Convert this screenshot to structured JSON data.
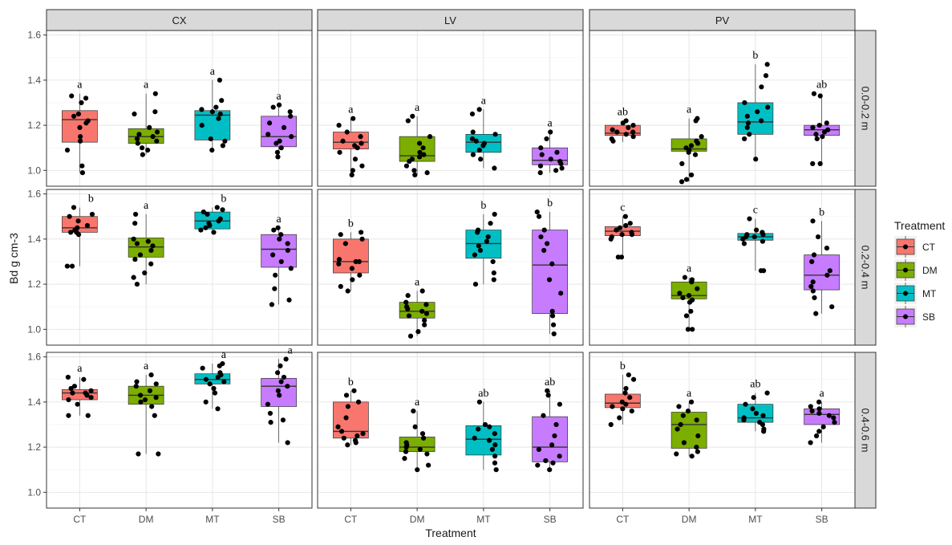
{
  "chart_data": {
    "type": "box",
    "xlabel": "Treatment",
    "ylabel": "Bd g cm-3",
    "ylim": [
      0.93,
      1.62
    ],
    "yticks": [
      1.0,
      1.2,
      1.4,
      1.6
    ],
    "ytick_labels": [
      "1.0",
      "1.2",
      "1.4",
      "1.6"
    ],
    "categories": [
      "CT",
      "DM",
      "MT",
      "SB"
    ],
    "column_facets": [
      "CX",
      "LV",
      "PV"
    ],
    "row_facets": [
      "0.0-0.2 m",
      "0.2-0.4 m",
      "0.4-0.6 m"
    ],
    "grid": true,
    "legend": {
      "title": "Treatment",
      "position": "right",
      "entries": [
        {
          "label": "CT",
          "color": "#F8766D"
        },
        {
          "label": "DM",
          "color": "#7CAE00"
        },
        {
          "label": "MT",
          "color": "#00BFC4"
        },
        {
          "label": "SB",
          "color": "#C77CFF"
        }
      ]
    },
    "panels": [
      {
        "row": 0,
        "col": 0,
        "boxes": [
          {
            "q1": 1.125,
            "median": 1.225,
            "q3": 1.265,
            "min": 0.99,
            "max": 1.34,
            "letter": "a",
            "points": [
              1.33,
              1.32,
              1.3,
              1.25,
              1.24,
              1.22,
              1.21,
              1.19,
              1.15,
              1.13,
              1.09,
              1.02,
              0.99
            ]
          },
          {
            "q1": 1.12,
            "median": 1.15,
            "q3": 1.185,
            "min": 1.07,
            "max": 1.34,
            "letter": "a",
            "points": [
              1.34,
              1.26,
              1.25,
              1.19,
              1.17,
              1.16,
              1.15,
              1.14,
              1.13,
              1.12,
              1.1,
              1.09,
              1.07
            ]
          },
          {
            "q1": 1.135,
            "median": 1.245,
            "q3": 1.265,
            "min": 1.085,
            "max": 1.4,
            "letter": "a",
            "points": [
              1.4,
              1.31,
              1.28,
              1.27,
              1.26,
              1.25,
              1.23,
              1.2,
              1.14,
              1.13,
              1.11,
              1.09
            ]
          },
          {
            "q1": 1.105,
            "median": 1.15,
            "q3": 1.24,
            "min": 1.06,
            "max": 1.29,
            "letter": "a",
            "points": [
              1.29,
              1.28,
              1.26,
              1.24,
              1.21,
              1.19,
              1.16,
              1.15,
              1.13,
              1.12,
              1.1,
              1.08,
              1.06
            ]
          }
        ]
      },
      {
        "row": 0,
        "col": 1,
        "boxes": [
          {
            "q1": 1.095,
            "median": 1.125,
            "q3": 1.17,
            "min": 0.98,
            "max": 1.23,
            "letter": "a",
            "points": [
              1.23,
              1.2,
              1.17,
              1.15,
              1.13,
              1.12,
              1.11,
              1.1,
              1.08,
              1.05,
              1.02,
              1.0,
              0.98
            ]
          },
          {
            "q1": 1.04,
            "median": 1.065,
            "q3": 1.15,
            "min": 0.98,
            "max": 1.24,
            "letter": "a",
            "points": [
              1.24,
              1.22,
              1.15,
              1.12,
              1.1,
              1.08,
              1.07,
              1.06,
              1.05,
              1.04,
              1.02,
              1.0,
              0.99,
              0.98
            ]
          },
          {
            "q1": 1.08,
            "median": 1.125,
            "q3": 1.16,
            "min": 1.01,
            "max": 1.27,
            "letter": "a",
            "points": [
              1.27,
              1.25,
              1.17,
              1.16,
              1.14,
              1.13,
              1.12,
              1.11,
              1.09,
              1.07,
              1.05,
              1.01
            ]
          },
          {
            "q1": 1.025,
            "median": 1.045,
            "q3": 1.1,
            "min": 0.99,
            "max": 1.17,
            "letter": "a",
            "points": [
              1.17,
              1.14,
              1.1,
              1.08,
              1.07,
              1.05,
              1.04,
              1.03,
              1.02,
              1.01,
              1.0,
              0.99
            ]
          }
        ]
      },
      {
        "row": 0,
        "col": 2,
        "boxes": [
          {
            "q1": 1.155,
            "median": 1.165,
            "q3": 1.2,
            "min": 1.125,
            "max": 1.22,
            "letter": "ab",
            "points": [
              1.22,
              1.21,
              1.2,
              1.19,
              1.18,
              1.17,
              1.17,
              1.16,
              1.15,
              1.14,
              1.13
            ]
          },
          {
            "q1": 1.085,
            "median": 1.095,
            "q3": 1.14,
            "min": 0.95,
            "max": 1.23,
            "letter": "a",
            "points": [
              1.23,
              1.22,
              1.15,
              1.13,
              1.12,
              1.11,
              1.1,
              1.09,
              1.08,
              1.07,
              1.03,
              0.98,
              0.96,
              0.95
            ]
          },
          {
            "q1": 1.16,
            "median": 1.215,
            "q3": 1.3,
            "min": 1.05,
            "max": 1.47,
            "letter": "b",
            "points": [
              1.47,
              1.42,
              1.37,
              1.3,
              1.28,
              1.26,
              1.24,
              1.22,
              1.21,
              1.19,
              1.16,
              1.14,
              1.05
            ]
          },
          {
            "q1": 1.155,
            "median": 1.18,
            "q3": 1.2,
            "min": 1.03,
            "max": 1.34,
            "letter": "ab",
            "points": [
              1.34,
              1.33,
              1.21,
              1.2,
              1.19,
              1.18,
              1.17,
              1.16,
              1.15,
              1.14,
              1.03,
              1.03
            ]
          }
        ]
      },
      {
        "row": 1,
        "col": 0,
        "boxes": [
          {
            "q1": 1.43,
            "median": 1.45,
            "q3": 1.5,
            "min": 1.28,
            "max": 1.54,
            "letter": "b",
            "points": [
              1.54,
              1.51,
              1.5,
              1.48,
              1.46,
              1.45,
              1.44,
              1.43,
              1.43,
              1.42,
              1.28,
              1.28
            ]
          },
          {
            "q1": 1.32,
            "median": 1.365,
            "q3": 1.405,
            "min": 1.2,
            "max": 1.51,
            "letter": "a",
            "points": [
              1.51,
              1.47,
              1.4,
              1.39,
              1.38,
              1.37,
              1.35,
              1.33,
              1.31,
              1.29,
              1.25,
              1.23,
              1.2
            ]
          },
          {
            "q1": 1.445,
            "median": 1.48,
            "q3": 1.52,
            "min": 1.43,
            "max": 1.54,
            "letter": "b",
            "points": [
              1.54,
              1.53,
              1.52,
              1.51,
              1.49,
              1.48,
              1.47,
              1.46,
              1.45,
              1.44,
              1.43
            ]
          },
          {
            "q1": 1.275,
            "median": 1.355,
            "q3": 1.42,
            "min": 1.11,
            "max": 1.45,
            "letter": "a",
            "points": [
              1.45,
              1.44,
              1.42,
              1.4,
              1.38,
              1.35,
              1.33,
              1.3,
              1.27,
              1.24,
              1.18,
              1.13,
              1.11
            ]
          }
        ]
      },
      {
        "row": 1,
        "col": 1,
        "boxes": [
          {
            "q1": 1.25,
            "median": 1.3,
            "q3": 1.4,
            "min": 1.17,
            "max": 1.43,
            "letter": "b",
            "points": [
              1.43,
              1.42,
              1.4,
              1.38,
              1.31,
              1.3,
              1.3,
              1.29,
              1.27,
              1.24,
              1.22,
              1.19,
              1.17
            ]
          },
          {
            "q1": 1.05,
            "median": 1.08,
            "q3": 1.12,
            "min": 0.97,
            "max": 1.17,
            "letter": "a",
            "points": [
              1.17,
              1.15,
              1.12,
              1.11,
              1.1,
              1.09,
              1.08,
              1.07,
              1.06,
              1.04,
              1.02,
              0.99,
              0.97
            ]
          },
          {
            "q1": 1.315,
            "median": 1.38,
            "q3": 1.44,
            "min": 1.2,
            "max": 1.51,
            "letter": "b",
            "points": [
              1.51,
              1.47,
              1.44,
              1.43,
              1.41,
              1.39,
              1.37,
              1.35,
              1.33,
              1.3,
              1.25,
              1.22,
              1.2
            ]
          },
          {
            "q1": 1.07,
            "median": 1.285,
            "q3": 1.44,
            "min": 0.98,
            "max": 1.52,
            "letter": "b",
            "points": [
              1.52,
              1.5,
              1.44,
              1.41,
              1.38,
              1.35,
              1.29,
              1.22,
              1.16,
              1.08,
              1.06,
              1.02,
              0.98
            ]
          }
        ]
      },
      {
        "row": 1,
        "col": 2,
        "boxes": [
          {
            "q1": 1.415,
            "median": 1.435,
            "q3": 1.455,
            "min": 1.32,
            "max": 1.5,
            "letter": "c",
            "points": [
              1.5,
              1.47,
              1.46,
              1.45,
              1.44,
              1.43,
              1.42,
              1.42,
              1.41,
              1.4,
              1.32,
              1.32
            ]
          },
          {
            "q1": 1.135,
            "median": 1.15,
            "q3": 1.21,
            "min": 1.0,
            "max": 1.23,
            "letter": "a",
            "points": [
              1.23,
              1.22,
              1.21,
              1.18,
              1.16,
              1.15,
              1.14,
              1.13,
              1.12,
              1.08,
              1.06,
              1.0,
              1.0
            ]
          },
          {
            "q1": 1.395,
            "median": 1.41,
            "q3": 1.425,
            "min": 1.26,
            "max": 1.49,
            "letter": "c",
            "points": [
              1.49,
              1.44,
              1.43,
              1.42,
              1.42,
              1.41,
              1.41,
              1.4,
              1.39,
              1.38,
              1.26,
              1.26
            ]
          },
          {
            "q1": 1.175,
            "median": 1.24,
            "q3": 1.33,
            "min": 1.07,
            "max": 1.48,
            "letter": "b",
            "points": [
              1.48,
              1.41,
              1.36,
              1.33,
              1.3,
              1.26,
              1.24,
              1.21,
              1.19,
              1.17,
              1.14,
              1.1,
              1.07
            ]
          }
        ]
      },
      {
        "row": 2,
        "col": 0,
        "boxes": [
          {
            "q1": 1.41,
            "median": 1.44,
            "q3": 1.455,
            "min": 1.34,
            "max": 1.51,
            "letter": "a",
            "points": [
              1.51,
              1.5,
              1.47,
              1.46,
              1.45,
              1.44,
              1.44,
              1.43,
              1.42,
              1.41,
              1.39,
              1.34,
              1.34
            ]
          },
          {
            "q1": 1.39,
            "median": 1.43,
            "q3": 1.47,
            "min": 1.17,
            "max": 1.52,
            "letter": "a",
            "points": [
              1.52,
              1.49,
              1.48,
              1.47,
              1.45,
              1.43,
              1.42,
              1.41,
              1.4,
              1.38,
              1.34,
              1.17,
              1.17
            ]
          },
          {
            "q1": 1.48,
            "median": 1.5,
            "q3": 1.525,
            "min": 1.37,
            "max": 1.57,
            "letter": "a",
            "points": [
              1.57,
              1.56,
              1.55,
              1.53,
              1.52,
              1.51,
              1.5,
              1.49,
              1.48,
              1.46,
              1.44,
              1.4,
              1.37
            ]
          },
          {
            "q1": 1.38,
            "median": 1.47,
            "q3": 1.505,
            "min": 1.22,
            "max": 1.59,
            "letter": "a",
            "points": [
              1.59,
              1.56,
              1.53,
              1.51,
              1.49,
              1.47,
              1.45,
              1.43,
              1.39,
              1.35,
              1.32,
              1.31,
              1.22
            ]
          }
        ]
      },
      {
        "row": 2,
        "col": 1,
        "boxes": [
          {
            "q1": 1.24,
            "median": 1.27,
            "q3": 1.4,
            "min": 1.21,
            "max": 1.45,
            "letter": "b",
            "points": [
              1.45,
              1.43,
              1.4,
              1.38,
              1.33,
              1.29,
              1.27,
              1.26,
              1.25,
              1.24,
              1.23,
              1.22,
              1.21
            ]
          },
          {
            "q1": 1.18,
            "median": 1.2,
            "q3": 1.245,
            "min": 1.1,
            "max": 1.36,
            "letter": "a",
            "points": [
              1.36,
              1.29,
              1.26,
              1.24,
              1.22,
              1.21,
              1.2,
              1.19,
              1.18,
              1.17,
              1.15,
              1.12,
              1.1
            ]
          },
          {
            "q1": 1.165,
            "median": 1.235,
            "q3": 1.295,
            "min": 1.1,
            "max": 1.4,
            "letter": "ab",
            "points": [
              1.4,
              1.3,
              1.29,
              1.28,
              1.26,
              1.24,
              1.23,
              1.21,
              1.19,
              1.16,
              1.13,
              1.1
            ]
          },
          {
            "q1": 1.135,
            "median": 1.2,
            "q3": 1.335,
            "min": 1.1,
            "max": 1.45,
            "letter": "ab",
            "points": [
              1.45,
              1.43,
              1.39,
              1.34,
              1.3,
              1.25,
              1.21,
              1.19,
              1.16,
              1.14,
              1.13,
              1.12,
              1.1
            ]
          }
        ]
      },
      {
        "row": 2,
        "col": 2,
        "boxes": [
          {
            "q1": 1.375,
            "median": 1.395,
            "q3": 1.435,
            "min": 1.3,
            "max": 1.52,
            "letter": "b",
            "points": [
              1.52,
              1.5,
              1.46,
              1.44,
              1.42,
              1.4,
              1.39,
              1.38,
              1.37,
              1.36,
              1.33,
              1.3
            ]
          },
          {
            "q1": 1.195,
            "median": 1.3,
            "q3": 1.355,
            "min": 1.16,
            "max": 1.4,
            "letter": "a",
            "points": [
              1.4,
              1.38,
              1.36,
              1.34,
              1.32,
              1.3,
              1.28,
              1.25,
              1.22,
              1.2,
              1.18,
              1.17,
              1.16
            ]
          },
          {
            "q1": 1.31,
            "median": 1.33,
            "q3": 1.39,
            "min": 1.27,
            "max": 1.44,
            "letter": "ab",
            "points": [
              1.44,
              1.42,
              1.39,
              1.37,
              1.35,
              1.34,
              1.33,
              1.32,
              1.31,
              1.3,
              1.28,
              1.27
            ]
          },
          {
            "q1": 1.3,
            "median": 1.345,
            "q3": 1.37,
            "min": 1.22,
            "max": 1.4,
            "letter": "a",
            "points": [
              1.4,
              1.38,
              1.37,
              1.36,
              1.35,
              1.34,
              1.33,
              1.31,
              1.29,
              1.27,
              1.25,
              1.22
            ]
          }
        ]
      }
    ]
  }
}
